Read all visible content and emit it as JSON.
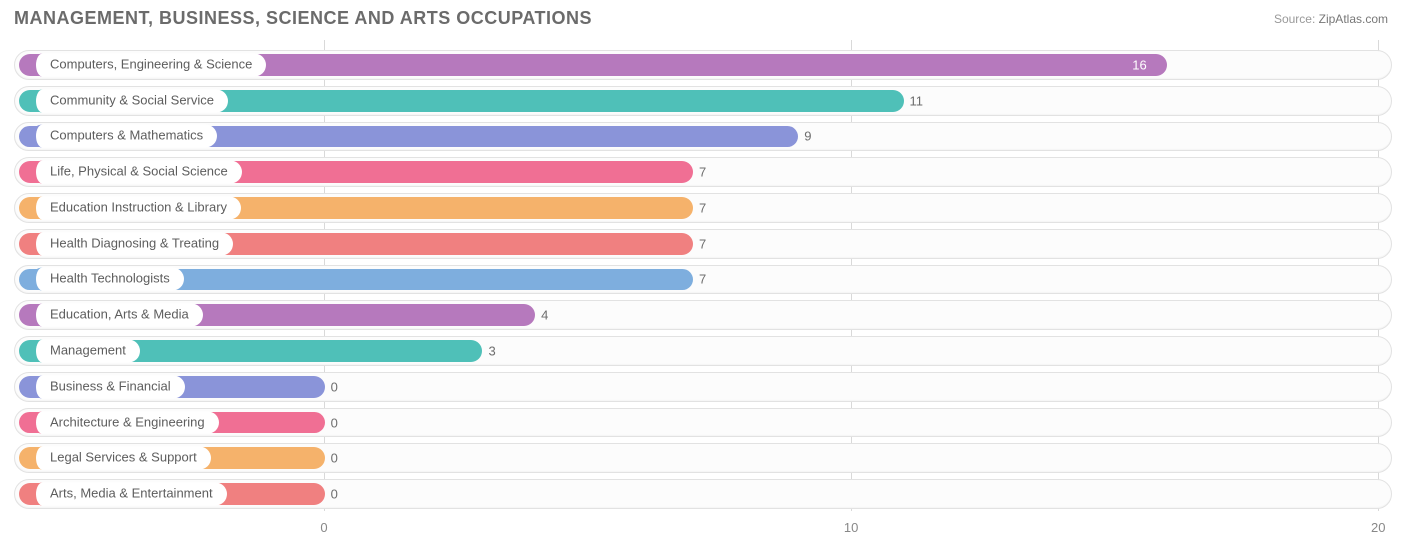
{
  "title": "MANAGEMENT, BUSINESS, SCIENCE AND ARTS OCCUPATIONS",
  "source": {
    "label": "Source:",
    "name": "ZipAtlas.com"
  },
  "chart": {
    "type": "bar-horizontal",
    "xlim": [
      0,
      20
    ],
    "ticks": [
      0,
      10,
      20
    ],
    "background_color": "#ffffff",
    "grid_color": "#d9d9d9",
    "row_border_color": "#e2e2e2",
    "label_fontsize": 13,
    "label_color": "#5d5d5d",
    "value_fontsize": 13,
    "value_color": "#6d6d6d",
    "title_fontsize": 18,
    "title_color": "#6b6b6b",
    "chart_left_offset_pct": 22.5,
    "rows": [
      {
        "label": "Computers, Engineering & Science",
        "value": 16,
        "color": "#b679bd",
        "value_inside": true
      },
      {
        "label": "Community & Social Service",
        "value": 11,
        "color": "#4fc0b8",
        "value_inside": false
      },
      {
        "label": "Computers & Mathematics",
        "value": 9,
        "color": "#8a94d9",
        "value_inside": false
      },
      {
        "label": "Life, Physical & Social Science",
        "value": 7,
        "color": "#f06f94",
        "value_inside": false
      },
      {
        "label": "Education Instruction & Library",
        "value": 7,
        "color": "#f5b26b",
        "value_inside": false
      },
      {
        "label": "Health Diagnosing & Treating",
        "value": 7,
        "color": "#f08080",
        "value_inside": false
      },
      {
        "label": "Health Technologists",
        "value": 7,
        "color": "#7eaede",
        "value_inside": false
      },
      {
        "label": "Education, Arts & Media",
        "value": 4,
        "color": "#b679bd",
        "value_inside": false
      },
      {
        "label": "Management",
        "value": 3,
        "color": "#4fc0b8",
        "value_inside": false
      },
      {
        "label": "Business & Financial",
        "value": 0,
        "color": "#8a94d9",
        "value_inside": false
      },
      {
        "label": "Architecture & Engineering",
        "value": 0,
        "color": "#f06f94",
        "value_inside": false
      },
      {
        "label": "Legal Services & Support",
        "value": 0,
        "color": "#f5b26b",
        "value_inside": false
      },
      {
        "label": "Arts, Media & Entertainment",
        "value": 0,
        "color": "#f08080",
        "value_inside": false
      }
    ]
  }
}
